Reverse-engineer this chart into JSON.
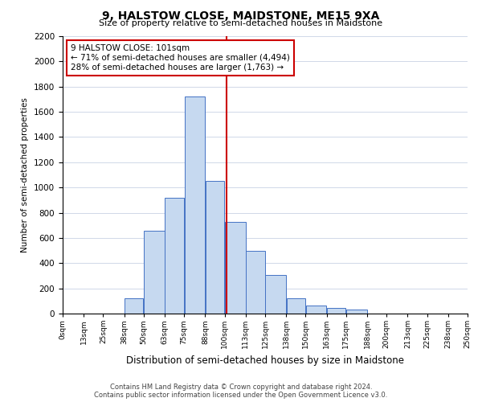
{
  "title": "9, HALSTOW CLOSE, MAIDSTONE, ME15 9XA",
  "subtitle": "Size of property relative to semi-detached houses in Maidstone",
  "xlabel": "Distribution of semi-detached houses by size in Maidstone",
  "ylabel": "Number of semi-detached properties",
  "bar_left_edges": [
    0,
    13,
    25,
    38,
    50,
    63,
    75,
    88,
    100,
    113,
    125,
    138,
    150,
    163,
    175,
    188,
    200,
    213,
    225,
    238
  ],
  "bar_widths": [
    13,
    12,
    13,
    12,
    13,
    12,
    13,
    12,
    13,
    12,
    13,
    12,
    13,
    12,
    13,
    12,
    13,
    12,
    13,
    12
  ],
  "bar_heights": [
    0,
    0,
    0,
    120,
    660,
    920,
    1720,
    1050,
    730,
    500,
    305,
    120,
    65,
    45,
    35,
    0,
    0,
    0,
    0,
    0
  ],
  "bar_color": "#c6d9f0",
  "bar_edgecolor": "#4472c4",
  "tick_labels": [
    "0sqm",
    "13sqm",
    "25sqm",
    "38sqm",
    "50sqm",
    "63sqm",
    "75sqm",
    "88sqm",
    "100sqm",
    "113sqm",
    "125sqm",
    "138sqm",
    "150sqm",
    "163sqm",
    "175sqm",
    "188sqm",
    "200sqm",
    "213sqm",
    "225sqm",
    "238sqm",
    "250sqm"
  ],
  "tick_positions": [
    0,
    13,
    25,
    38,
    50,
    63,
    75,
    88,
    100,
    113,
    125,
    138,
    150,
    163,
    175,
    188,
    200,
    213,
    225,
    238,
    250
  ],
  "ylim": [
    0,
    2200
  ],
  "xlim": [
    0,
    250
  ],
  "yticks": [
    0,
    200,
    400,
    600,
    800,
    1000,
    1200,
    1400,
    1600,
    1800,
    2000,
    2200
  ],
  "vline_x": 101,
  "vline_color": "#cc0000",
  "annotation_title": "9 HALSTOW CLOSE: 101sqm",
  "annotation_line1": "← 71% of semi-detached houses are smaller (4,494)",
  "annotation_line2": "28% of semi-detached houses are larger (1,763) →",
  "annotation_box_color": "#ffffff",
  "annotation_box_edgecolor": "#cc0000",
  "footer_line1": "Contains HM Land Registry data © Crown copyright and database right 2024.",
  "footer_line2": "Contains public sector information licensed under the Open Government Licence v3.0.",
  "background_color": "#ffffff",
  "grid_color": "#d0d8e8"
}
